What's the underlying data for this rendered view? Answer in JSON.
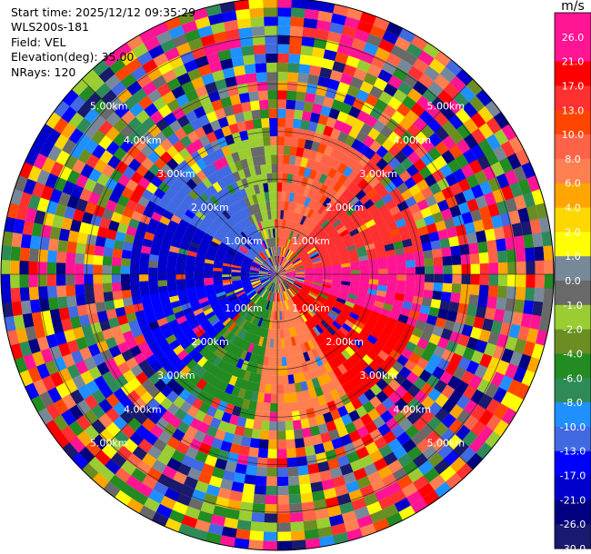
{
  "meta": {
    "start_time": "Start time: 2025/12/12 09:35:29",
    "site": "WLS200s-181",
    "field": "Field: VEL",
    "elevation": "Elevation(deg): 35.00",
    "nrays": "NRays: 120"
  },
  "chart_data": {
    "type": "heatmap",
    "projection": "polar-ppi",
    "field": "VEL",
    "units": "m/s",
    "range_rings_km": [
      1.0,
      2.0,
      3.0,
      4.0,
      5.0
    ],
    "range_ring_labels": [
      "1.00km",
      "2.00km",
      "3.00km",
      "4.00km",
      "5.00km"
    ],
    "max_range_km": 5.8,
    "n_rays": 120,
    "range_gates": 30,
    "colorbar": {
      "label": "m/s",
      "ticks": [
        "26.0",
        "21.0",
        "17.0",
        "13.0",
        "10.0",
        "8.0",
        "6.0",
        "4.0",
        "2.0",
        "1.0",
        "0.0",
        "-1.0",
        "-2.0",
        "-4.0",
        "-6.0",
        "-8.0",
        "-10.0",
        "-13.0",
        "-17.0",
        "-21.0",
        "-26.0",
        "-30.0"
      ],
      "colors": [
        "#ff1493",
        "#ff1493",
        "#ff0000",
        "#ff3030",
        "#ff4500",
        "#ff6347",
        "#ff7f50",
        "#ffa500",
        "#ffd700",
        "#ffff00",
        "#778899",
        "#696969",
        "#9acd32",
        "#6b8e23",
        "#228b22",
        "#2e8b57",
        "#1e90ff",
        "#4169e1",
        "#0000ff",
        "#0000cd",
        "#000080",
        "#191970"
      ]
    },
    "structure": {
      "inner_core_radius_km": 3.0,
      "sectors": [
        {
          "from_deg": 0,
          "to_deg": 40,
          "value": 8.0
        },
        {
          "from_deg": 40,
          "to_deg": 80,
          "value": 13.0
        },
        {
          "from_deg": 80,
          "to_deg": 110,
          "value": 26.0
        },
        {
          "from_deg": 110,
          "to_deg": 150,
          "value": 17.0
        },
        {
          "from_deg": 150,
          "to_deg": 190,
          "value": 6.0
        },
        {
          "from_deg": 190,
          "to_deg": 225,
          "value": -6.0
        },
        {
          "from_deg": 225,
          "to_deg": 260,
          "value": -17.0
        },
        {
          "from_deg": 260,
          "to_deg": 300,
          "value": -21.0
        },
        {
          "from_deg": 300,
          "to_deg": 335,
          "value": -13.0
        },
        {
          "from_deg": 335,
          "to_deg": 360,
          "value": -2.0
        }
      ],
      "outer": "noise"
    }
  }
}
